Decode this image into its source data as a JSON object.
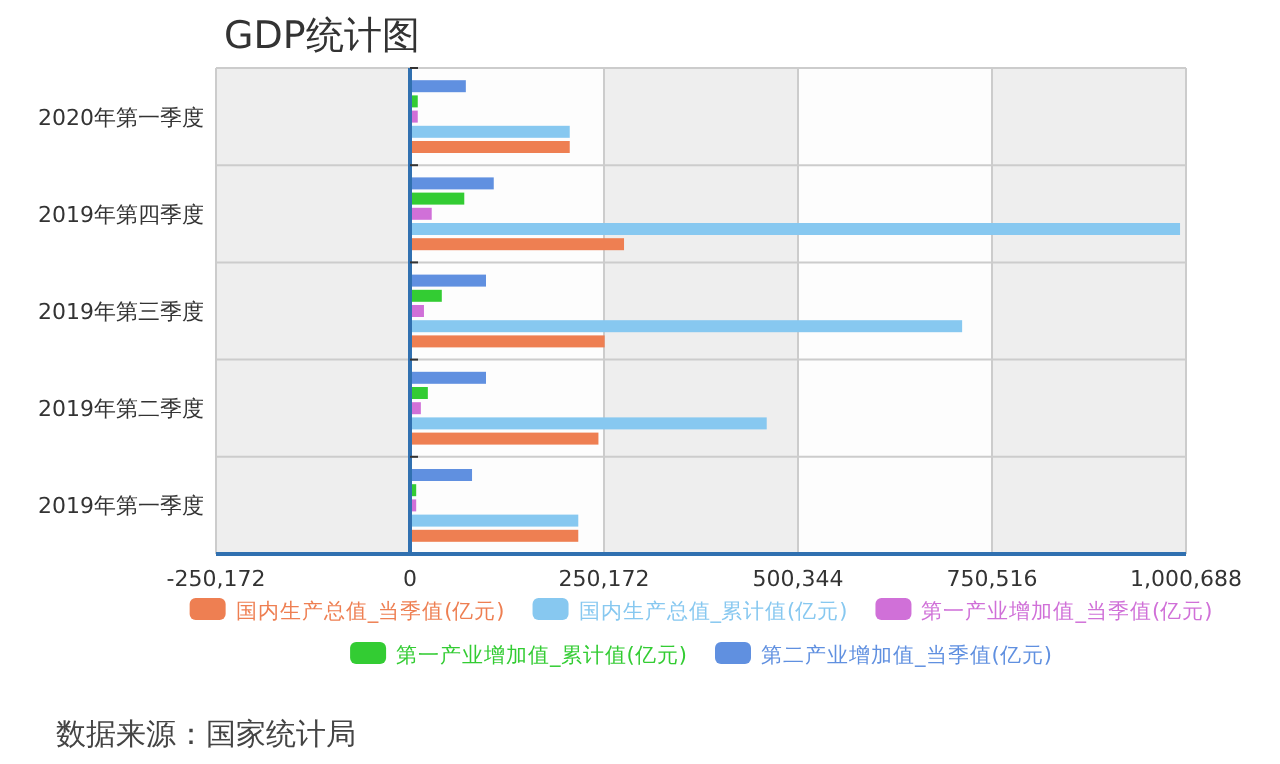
{
  "chart_data": {
    "type": "bar",
    "orientation": "horizontal",
    "title": "GDP统计图",
    "categories": [
      "2020年第一季度",
      "2019年第四季度",
      "2019年第三季度",
      "2019年第二季度",
      "2019年第一季度"
    ],
    "series": [
      {
        "name": "国内生产总值_当季值(亿元)",
        "color": "#ee7f52",
        "values": [
          206000,
          276000,
          251000,
          243000,
          217000
        ]
      },
      {
        "name": "国内生产总值_累计值(亿元)",
        "color": "#87c8f0",
        "values": [
          206000,
          993000,
          712000,
          460000,
          217000
        ]
      },
      {
        "name": "第一产业增加值_当季值(亿元)",
        "color": "#d070d8",
        "values": [
          10000,
          28000,
          18000,
          14000,
          8000
        ]
      },
      {
        "name": "第一产业增加值_累计值(亿元)",
        "color": "#33cc33",
        "values": [
          10000,
          70000,
          41000,
          23000,
          8000
        ]
      },
      {
        "name": "第二产业增加值_当季值(亿元)",
        "color": "#6090e0",
        "values": [
          72000,
          108000,
          98000,
          98000,
          80000
        ]
      }
    ],
    "xlim": [
      -250172,
      1000688
    ],
    "xticks": [
      {
        "value": -250172,
        "label": "-250,172"
      },
      0,
      {
        "value": 250172,
        "label": "250,172"
      },
      {
        "value": 500344,
        "label": "500,344"
      },
      {
        "value": 750516,
        "label": "750,516"
      },
      {
        "value": 1000688,
        "label": "1,000,688"
      }
    ],
    "ref_lines": [
      {
        "axis": "x",
        "value": 0,
        "color": "#3070b0"
      }
    ],
    "grid": true,
    "legend": "bottom",
    "annotations": [
      "数据来源：国家统计局"
    ]
  }
}
